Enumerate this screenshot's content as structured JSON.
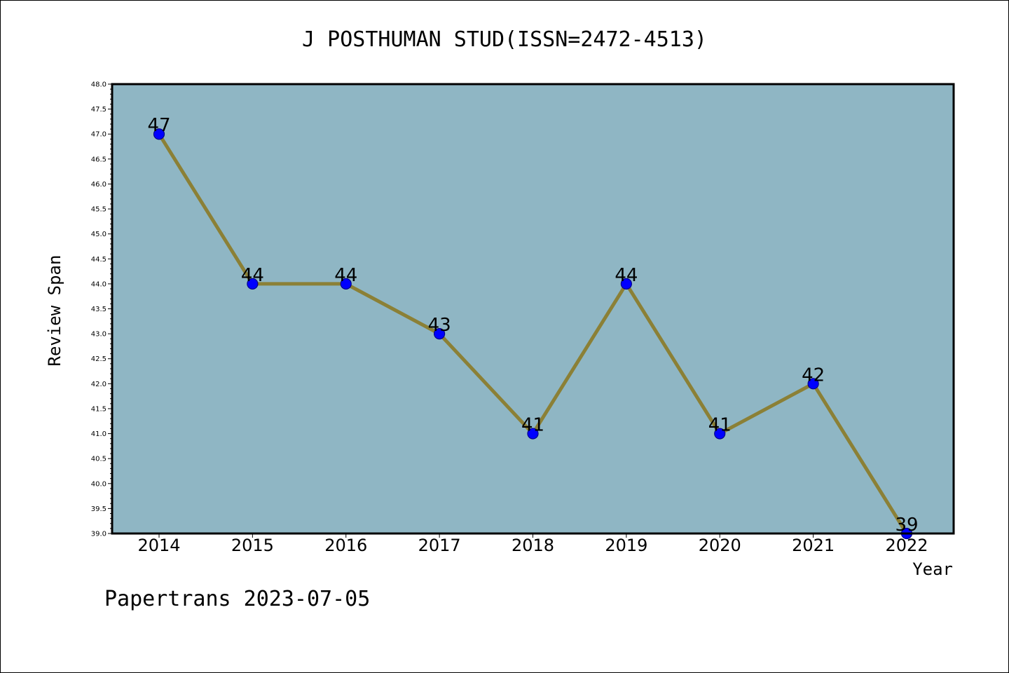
{
  "chart_data": {
    "type": "line",
    "title": "J POSTHUMAN STUD(ISSN=2472-4513)",
    "xlabel": "Year",
    "ylabel": "Review Span",
    "categories": [
      "2014",
      "2015",
      "2016",
      "2017",
      "2018",
      "2019",
      "2020",
      "2021",
      "2022"
    ],
    "values": [
      47,
      44,
      44,
      43,
      41,
      44,
      41,
      42,
      39
    ],
    "data_labels": [
      "47",
      "44",
      "44",
      "43",
      "41",
      "44",
      "41",
      "42",
      "39"
    ],
    "ylim": [
      39.0,
      48.0
    ],
    "yticks": [
      "39.0",
      "39.5",
      "40.0",
      "40.5",
      "41.0",
      "41.5",
      "42.0",
      "42.5",
      "43.0",
      "43.5",
      "44.0",
      "44.5",
      "45.0",
      "45.5",
      "46.0",
      "46.5",
      "47.0",
      "47.5",
      "48.0"
    ],
    "grid": false,
    "legend": "none",
    "colors": {
      "plot_background": "#8fb6c4",
      "line": "#8b8036",
      "marker": "#0000ff",
      "marker_edge": "#00008b"
    }
  },
  "footer": {
    "watermark": "Papertrans 2023-07-05"
  }
}
